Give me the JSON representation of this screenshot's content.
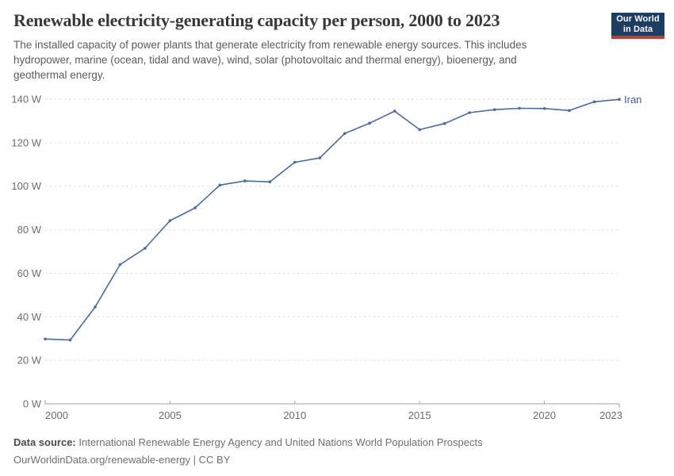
{
  "header": {
    "title": "Renewable electricity-generating capacity per person, 2000 to 2023",
    "subtitle_lines": [
      "The installed capacity of power plants that generate electricity from renewable energy sources. This includes",
      "hydropower, marine (ocean, tidal and wave), wind, solar (photovoltaic and thermal energy), bioenergy, and",
      "geothermal energy."
    ]
  },
  "logo": {
    "line1": "Our World",
    "line2": "in Data",
    "bg_color": "#1d3d63",
    "bar_color": "#c23b34"
  },
  "footer": {
    "source_label": "Data source:",
    "source_text": " International Renewable Energy Agency and United Nations World Population Prospects",
    "url_text": "OurWorldinData.org/renewable-energy",
    "separator": " | ",
    "license_text": "CC BY"
  },
  "chart_data": {
    "type": "line",
    "title": "Renewable electricity-generating capacity per person, 2000 to 2023",
    "xlabel": "",
    "ylabel": "",
    "unit": "W",
    "ylim": [
      0,
      140
    ],
    "ytick_step": 20,
    "ytick_suffix": " W",
    "xticks": [
      2000,
      2005,
      2010,
      2015,
      2020,
      2023
    ],
    "grid": true,
    "legend_position": "end-of-line",
    "line_color": "#4c6a9c",
    "label_color": "#3d5c94",
    "series": [
      {
        "name": "Iran",
        "x": [
          2000,
          2001,
          2002,
          2003,
          2004,
          2005,
          2006,
          2007,
          2008,
          2009,
          2010,
          2011,
          2012,
          2013,
          2014,
          2015,
          2016,
          2017,
          2018,
          2019,
          2020,
          2021,
          2022,
          2023
        ],
        "values": [
          29.8,
          29.3,
          44.5,
          64,
          71.5,
          84.2,
          90,
          100.5,
          102.4,
          102,
          111,
          113,
          124.2,
          129,
          134.5,
          126,
          128.8,
          133.8,
          135.2,
          135.8,
          135.7,
          134.8,
          138.8,
          139.9
        ]
      }
    ]
  }
}
